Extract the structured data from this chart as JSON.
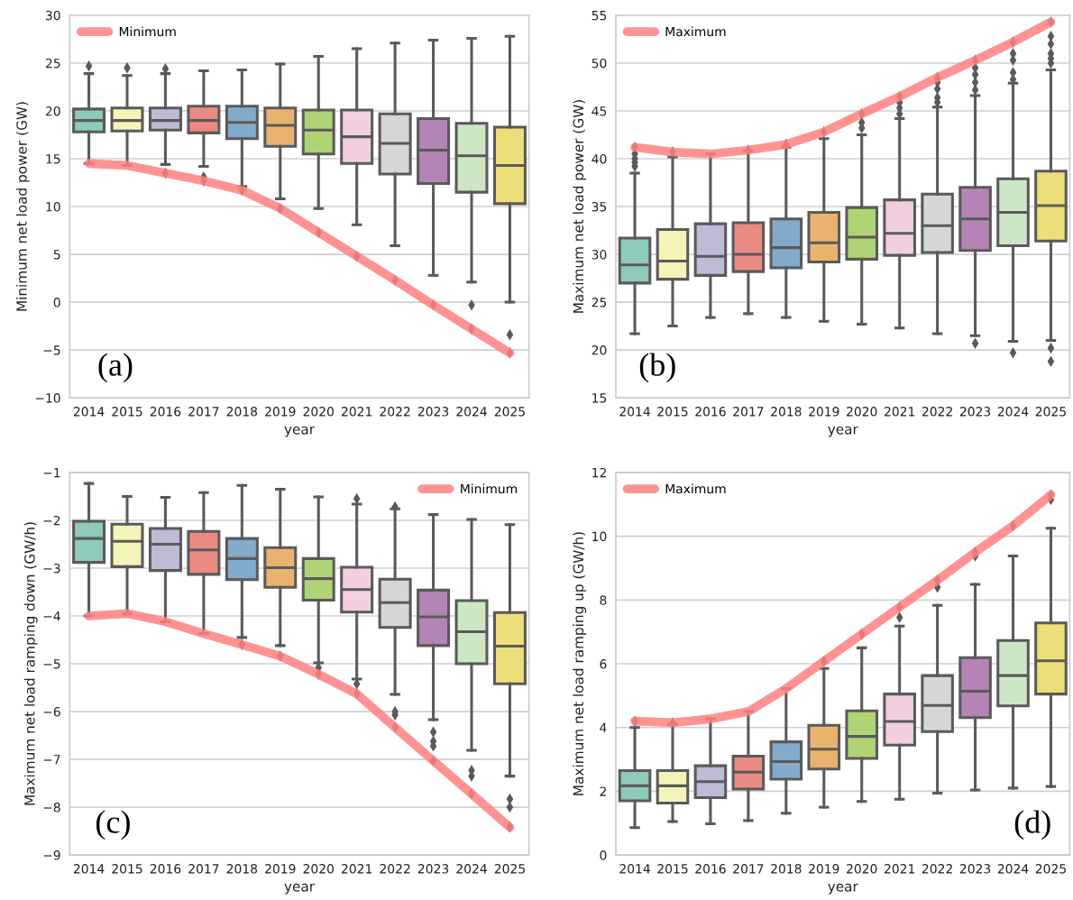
{
  "chart_data": [
    {
      "type": "box",
      "categories": [
        "2014",
        "2015",
        "2016",
        "2017",
        "2018",
        "2019",
        "2020",
        "2021",
        "2022",
        "2023",
        "2024",
        "2025"
      ],
      "xlabel": "year",
      "ylabel": "Minimum net load power (GW)",
      "annotations": [
        "(a)"
      ],
      "ylim": [
        -10,
        30
      ],
      "yticks": [
        -10,
        -5,
        0,
        5,
        10,
        15,
        20,
        25,
        30
      ],
      "grid": "y",
      "legend": "top left",
      "series": [
        {
          "colors": [
            "#8ec9bb",
            "#f5f3b8",
            "#bfbad6",
            "#e98b82",
            "#82aacb",
            "#e9b26f",
            "#b0d475",
            "#f2cfe0",
            "#d6d6d6",
            "#b384b5",
            "#cde7c6",
            "#ecdf7a"
          ],
          "boxes": [
            {
              "low": 14.5,
              "q1": 17.8,
              "median": 19.0,
              "q3": 20.2,
              "high": 23.9,
              "outliers": [
                24.7
              ]
            },
            {
              "low": 14.3,
              "q1": 17.9,
              "median": 19.0,
              "q3": 20.3,
              "high": 23.7,
              "outliers": [
                24.5
              ]
            },
            {
              "low": 14.4,
              "q1": 18.0,
              "median": 19.0,
              "q3": 20.3,
              "high": 23.9,
              "outliers": [
                24.4,
                13.5
              ]
            },
            {
              "low": 14.2,
              "q1": 17.7,
              "median": 19.0,
              "q3": 20.5,
              "high": 24.2,
              "outliers": [
                13.1,
                12.7
              ]
            },
            {
              "low": 12.1,
              "q1": 17.1,
              "median": 18.8,
              "q3": 20.5,
              "high": 24.3,
              "outliers": [
                11.7
              ]
            },
            {
              "low": 10.8,
              "q1": 16.3,
              "median": 18.5,
              "q3": 20.3,
              "high": 24.9,
              "outliers": [
                9.8
              ]
            },
            {
              "low": 9.8,
              "q1": 15.5,
              "median": 18.0,
              "q3": 20.1,
              "high": 25.7,
              "outliers": [
                7.3
              ]
            },
            {
              "low": 8.1,
              "q1": 14.5,
              "median": 17.3,
              "q3": 20.1,
              "high": 26.5,
              "outliers": [
                4.8
              ]
            },
            {
              "low": 5.9,
              "q1": 13.4,
              "median": 16.6,
              "q3": 19.7,
              "high": 27.1,
              "outliers": [
                2.3
              ]
            },
            {
              "low": 2.8,
              "q1": 12.4,
              "median": 15.9,
              "q3": 19.2,
              "high": 27.4,
              "outliers": [
                -0.3
              ]
            },
            {
              "low": 2.1,
              "q1": 11.5,
              "median": 15.3,
              "q3": 18.7,
              "high": 27.6,
              "outliers": [
                -0.3,
                -2.8
              ]
            },
            {
              "low": 0.0,
              "q1": 10.3,
              "median": 14.3,
              "q3": 18.3,
              "high": 27.8,
              "outliers": [
                -3.4,
                -5.3
              ]
            }
          ]
        },
        {
          "type": "line",
          "name": "Minimum",
          "color": "#ff8080",
          "values": [
            14.5,
            14.3,
            13.5,
            12.7,
            11.7,
            9.8,
            7.3,
            4.8,
            2.3,
            -0.3,
            -2.8,
            -5.3
          ]
        }
      ]
    },
    {
      "type": "box",
      "categories": [
        "2014",
        "2015",
        "2016",
        "2017",
        "2018",
        "2019",
        "2020",
        "2021",
        "2022",
        "2023",
        "2024",
        "2025"
      ],
      "xlabel": "year",
      "ylabel": "Maximum net load power (GW)",
      "annotations": [
        "(b)"
      ],
      "ylim": [
        15,
        55
      ],
      "yticks": [
        15,
        20,
        25,
        30,
        35,
        40,
        45,
        50,
        55
      ],
      "grid": "y",
      "legend": "top left",
      "series": [
        {
          "colors": [
            "#8ec9bb",
            "#f5f3b8",
            "#bfbad6",
            "#e98b82",
            "#82aacb",
            "#e9b26f",
            "#b0d475",
            "#f2cfe0",
            "#d6d6d6",
            "#b384b5",
            "#cde7c6",
            "#ecdf7a"
          ],
          "boxes": [
            {
              "low": 21.7,
              "q1": 27.0,
              "median": 28.9,
              "q3": 31.7,
              "high": 38.5,
              "outliers": [
                39.2,
                39.6,
                40.0,
                40.5,
                41.2
              ]
            },
            {
              "low": 22.5,
              "q1": 27.4,
              "median": 29.3,
              "q3": 32.6,
              "high": 40.2,
              "outliers": [
                40.7
              ]
            },
            {
              "low": 23.4,
              "q1": 27.8,
              "median": 29.8,
              "q3": 33.2,
              "high": 40.5
            },
            {
              "low": 23.8,
              "q1": 28.2,
              "median": 30.0,
              "q3": 33.3,
              "high": 40.8,
              "outliers": [
                40.9
              ]
            },
            {
              "low": 23.4,
              "q1": 28.6,
              "median": 30.7,
              "q3": 33.7,
              "high": 41.2,
              "outliers": [
                41.5
              ]
            },
            {
              "low": 23.0,
              "q1": 29.2,
              "median": 31.2,
              "q3": 34.4,
              "high": 42.1,
              "outliers": [
                42.8
              ]
            },
            {
              "low": 22.7,
              "q1": 29.5,
              "median": 31.8,
              "q3": 34.9,
              "high": 42.5,
              "outliers": [
                43.2,
                43.8,
                44.7
              ]
            },
            {
              "low": 22.3,
              "q1": 29.9,
              "median": 32.2,
              "q3": 35.7,
              "high": 44.2,
              "outliers": [
                44.7,
                45.3,
                45.9,
                46.5
              ]
            },
            {
              "low": 21.7,
              "q1": 30.2,
              "median": 33.0,
              "q3": 36.3,
              "high": 45.4,
              "outliers": [
                45.9,
                46.4,
                47.3,
                48.0,
                48.5
              ]
            },
            {
              "low": 21.5,
              "q1": 30.4,
              "median": 33.7,
              "q3": 37.0,
              "high": 46.6,
              "outliers": [
                20.7,
                47.2,
                48.0,
                48.8,
                49.5,
                50.3
              ]
            },
            {
              "low": 20.9,
              "q1": 30.9,
              "median": 34.4,
              "q3": 37.9,
              "high": 47.9,
              "outliers": [
                19.7,
                48.3,
                49.0,
                50.3,
                51.0,
                52.2
              ]
            },
            {
              "low": 21.0,
              "q1": 31.4,
              "median": 35.1,
              "q3": 38.7,
              "high": 49.3,
              "outliers": [
                18.8,
                20.2,
                50.0,
                50.5,
                51.0,
                52.0,
                52.8,
                54.3
              ]
            }
          ]
        },
        {
          "type": "line",
          "name": "Maximum",
          "color": "#ff8080",
          "values": [
            41.2,
            40.7,
            40.5,
            40.9,
            41.5,
            42.8,
            44.7,
            46.5,
            48.5,
            50.3,
            52.2,
            54.3
          ]
        }
      ]
    },
    {
      "type": "box",
      "categories": [
        "2014",
        "2015",
        "2016",
        "2017",
        "2018",
        "2019",
        "2020",
        "2021",
        "2022",
        "2023",
        "2024",
        "2025"
      ],
      "xlabel": "year",
      "ylabel": "Maximum net load ramping down (GW/h)",
      "annotations": [
        "(c)"
      ],
      "ylim": [
        -9,
        -1
      ],
      "yticks": [
        -9,
        -8,
        -7,
        -6,
        -5,
        -4,
        -3,
        -2,
        -1
      ],
      "grid": "y",
      "legend": "top right",
      "series": [
        {
          "colors": [
            "#8ec9bb",
            "#f5f3b8",
            "#bfbad6",
            "#e98b82",
            "#82aacb",
            "#e9b26f",
            "#b0d475",
            "#f2cfe0",
            "#d6d6d6",
            "#b384b5",
            "#cde7c6",
            "#ecdf7a"
          ],
          "boxes": [
            {
              "low": -4.0,
              "q1": -2.88,
              "median": -2.38,
              "q3": -2.02,
              "high": -1.23
            },
            {
              "low": -3.95,
              "q1": -2.97,
              "median": -2.44,
              "q3": -2.08,
              "high": -1.5
            },
            {
              "low": -4.12,
              "q1": -3.05,
              "median": -2.5,
              "q3": -2.17,
              "high": -1.52
            },
            {
              "low": -4.37,
              "q1": -3.13,
              "median": -2.62,
              "q3": -2.23,
              "high": -1.42
            },
            {
              "low": -4.45,
              "q1": -3.24,
              "median": -2.8,
              "q3": -2.38,
              "high": -1.27,
              "outliers": [
                -4.6
              ]
            },
            {
              "low": -4.62,
              "q1": -3.4,
              "median": -2.99,
              "q3": -2.57,
              "high": -1.35,
              "outliers": [
                -4.84
              ]
            },
            {
              "low": -4.98,
              "q1": -3.67,
              "median": -3.22,
              "q3": -2.8,
              "high": -1.51,
              "outliers": [
                -5.08,
                -5.22
              ]
            },
            {
              "low": -5.32,
              "q1": -3.92,
              "median": -3.45,
              "q3": -2.98,
              "high": -1.66,
              "outliers": [
                -1.55,
                -5.42,
                -5.63
              ]
            },
            {
              "low": -5.64,
              "q1": -4.24,
              "median": -3.72,
              "q3": -3.23,
              "high": -1.76,
              "outliers": [
                -1.72,
                -6.0,
                -6.07,
                -6.33
              ]
            },
            {
              "low": -6.17,
              "q1": -4.62,
              "median": -4.02,
              "q3": -3.46,
              "high": -1.88,
              "outliers": [
                -6.43,
                -6.62,
                -6.72,
                -7.03
              ]
            },
            {
              "low": -6.81,
              "q1": -5.0,
              "median": -4.33,
              "q3": -3.68,
              "high": -1.98,
              "outliers": [
                -7.23,
                -7.35,
                -7.72
              ]
            },
            {
              "low": -7.35,
              "q1": -5.42,
              "median": -4.63,
              "q3": -3.93,
              "high": -2.09,
              "outliers": [
                -7.83,
                -8.0,
                -8.42
              ]
            }
          ]
        },
        {
          "type": "line",
          "name": "Minimum",
          "color": "#ff8080",
          "values": [
            -4.0,
            -3.95,
            -4.12,
            -4.37,
            -4.6,
            -4.84,
            -5.22,
            -5.63,
            -6.33,
            -7.03,
            -7.72,
            -8.42
          ]
        }
      ]
    },
    {
      "type": "box",
      "categories": [
        "2014",
        "2015",
        "2016",
        "2017",
        "2018",
        "2019",
        "2020",
        "2021",
        "2022",
        "2023",
        "2024",
        "2025"
      ],
      "xlabel": "year",
      "ylabel": "Maximum net load ramping up (GW/h)",
      "annotations": [
        "(d)"
      ],
      "ylim": [
        0,
        12
      ],
      "yticks": [
        0,
        2,
        4,
        6,
        8,
        10,
        12
      ],
      "grid": "y",
      "legend": "top left",
      "series": [
        {
          "colors": [
            "#8ec9bb",
            "#f5f3b8",
            "#bfbad6",
            "#e98b82",
            "#82aacb",
            "#e9b26f",
            "#b0d475",
            "#f2cfe0",
            "#d6d6d6",
            "#b384b5",
            "#cde7c6",
            "#ecdf7a"
          ],
          "boxes": [
            {
              "low": 0.86,
              "q1": 1.7,
              "median": 2.17,
              "q3": 2.65,
              "high": 4.0,
              "outliers": [
                4.2
              ]
            },
            {
              "low": 1.05,
              "q1": 1.63,
              "median": 2.17,
              "q3": 2.65,
              "high": 4.1,
              "outliers": [
                4.15
              ]
            },
            {
              "low": 0.98,
              "q1": 1.8,
              "median": 2.3,
              "q3": 2.8,
              "high": 4.27
            },
            {
              "low": 1.08,
              "q1": 2.07,
              "median": 2.6,
              "q3": 3.1,
              "high": 4.5
            },
            {
              "low": 1.31,
              "q1": 2.38,
              "median": 2.93,
              "q3": 3.55,
              "high": 5.22
            },
            {
              "low": 1.5,
              "q1": 2.7,
              "median": 3.32,
              "q3": 4.07,
              "high": 5.85,
              "outliers": [
                6.08
              ]
            },
            {
              "low": 1.68,
              "q1": 3.03,
              "median": 3.72,
              "q3": 4.52,
              "high": 6.5,
              "outliers": [
                6.93
              ]
            },
            {
              "low": 1.75,
              "q1": 3.45,
              "median": 4.19,
              "q3": 5.05,
              "high": 7.18,
              "outliers": [
                7.45,
                7.78
              ]
            },
            {
              "low": 1.94,
              "q1": 3.87,
              "median": 4.69,
              "q3": 5.63,
              "high": 7.83,
              "outliers": [
                8.4,
                8.62
              ]
            },
            {
              "low": 2.04,
              "q1": 4.31,
              "median": 5.14,
              "q3": 6.19,
              "high": 8.49,
              "outliers": [
                9.38,
                9.5
              ]
            },
            {
              "low": 2.1,
              "q1": 4.68,
              "median": 5.63,
              "q3": 6.73,
              "high": 9.38,
              "outliers": [
                10.33
              ]
            },
            {
              "low": 2.15,
              "q1": 5.05,
              "median": 6.09,
              "q3": 7.28,
              "high": 10.25,
              "outliers": [
                11.15,
                11.3
              ]
            }
          ]
        },
        {
          "type": "line",
          "name": "Maximum",
          "color": "#ff8080",
          "values": [
            4.2,
            4.15,
            4.27,
            4.5,
            5.22,
            6.08,
            6.93,
            7.78,
            8.62,
            9.5,
            10.33,
            11.3
          ]
        }
      ]
    }
  ]
}
